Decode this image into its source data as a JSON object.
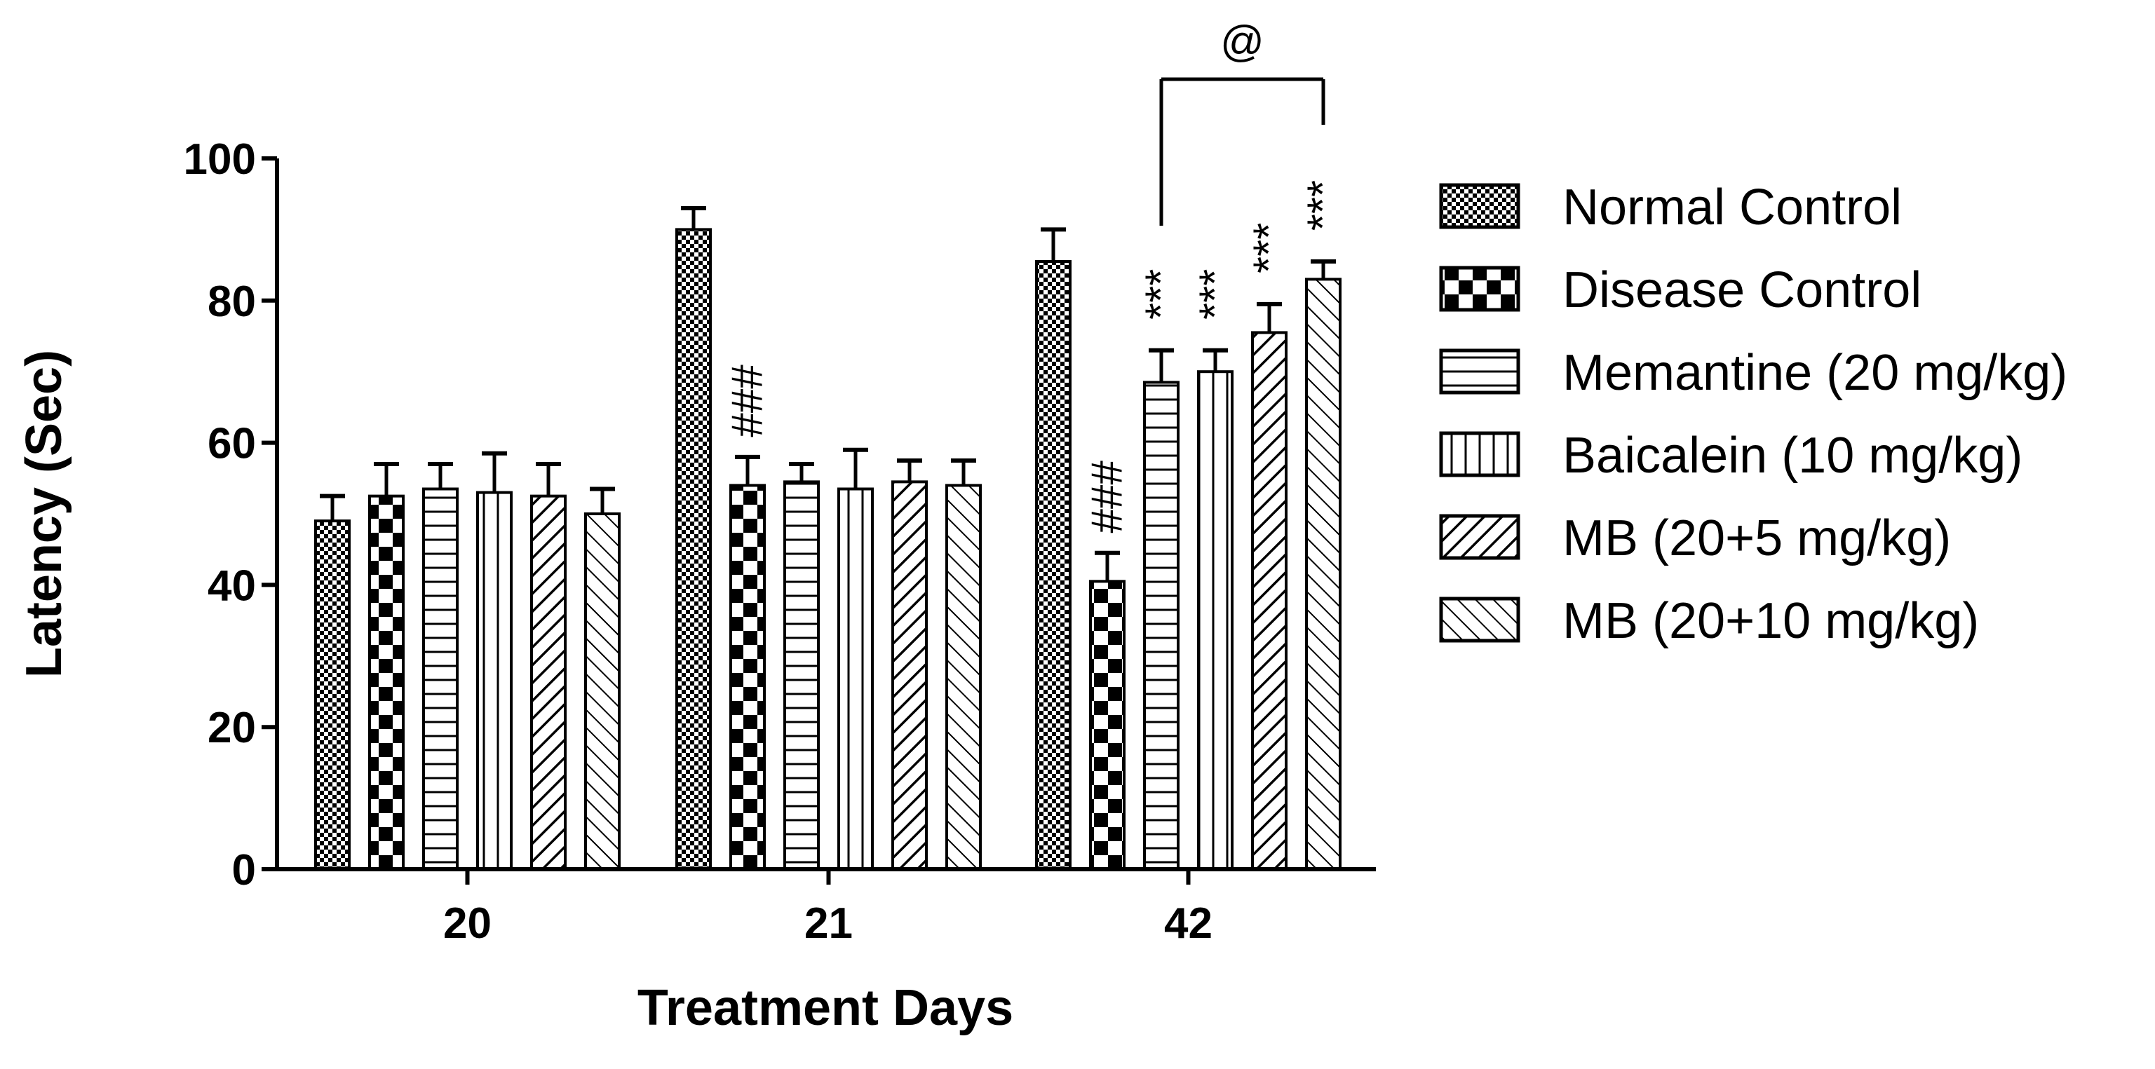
{
  "chart_data": {
    "type": "bar",
    "title": "",
    "xlabel": "Treatment Days",
    "ylabel": "Latency (Sec)",
    "ylim": [
      0,
      100
    ],
    "yticks": [
      0,
      20,
      40,
      60,
      80,
      100
    ],
    "categories": [
      "20",
      "21",
      "42"
    ],
    "legend_position": "right",
    "grid": false,
    "series": [
      {
        "name": "Normal Control",
        "pattern": "dense-checker",
        "values": [
          49,
          90,
          85.5
        ],
        "errors": [
          3.5,
          3,
          4.5
        ]
      },
      {
        "name": "Disease Control",
        "pattern": "checker",
        "values": [
          52.5,
          54,
          40.5
        ],
        "errors": [
          4.5,
          4,
          4
        ]
      },
      {
        "name": "Memantine (20 mg/kg)",
        "pattern": "horizontal",
        "values": [
          53.5,
          54.5,
          68.5
        ],
        "errors": [
          3.5,
          2.5,
          4.5
        ]
      },
      {
        "name": "Baicalein (10 mg/kg)",
        "pattern": "vertical",
        "values": [
          53,
          53.5,
          70
        ],
        "errors": [
          5.5,
          5.5,
          3
        ]
      },
      {
        "name": "MB (20+5 mg/kg)",
        "pattern": "diagonal-right",
        "values": [
          52.5,
          54.5,
          75.5
        ],
        "errors": [
          4.5,
          3,
          4
        ]
      },
      {
        "name": "MB (20+10 mg/kg)",
        "pattern": "diagonal-left",
        "values": [
          50,
          54,
          83
        ],
        "errors": [
          3.5,
          3.5,
          2.5
        ]
      }
    ],
    "annotations": [
      {
        "text": "###",
        "category": "21",
        "series": "Disease Control"
      },
      {
        "text": "###",
        "category": "42",
        "series": "Disease Control"
      },
      {
        "text": "***",
        "category": "42",
        "series": "Memantine (20 mg/kg)"
      },
      {
        "text": "***",
        "category": "42",
        "series": "Baicalein (10 mg/kg)"
      },
      {
        "text": "***",
        "category": "42",
        "series": "MB (20+5 mg/kg)"
      },
      {
        "text": "***",
        "category": "42",
        "series": "MB (20+10 mg/kg)"
      }
    ],
    "bracket": {
      "text": "@",
      "category": "42",
      "from_series": "Memantine (20 mg/kg)",
      "to_series": "MB (20+10 mg/kg)"
    }
  }
}
